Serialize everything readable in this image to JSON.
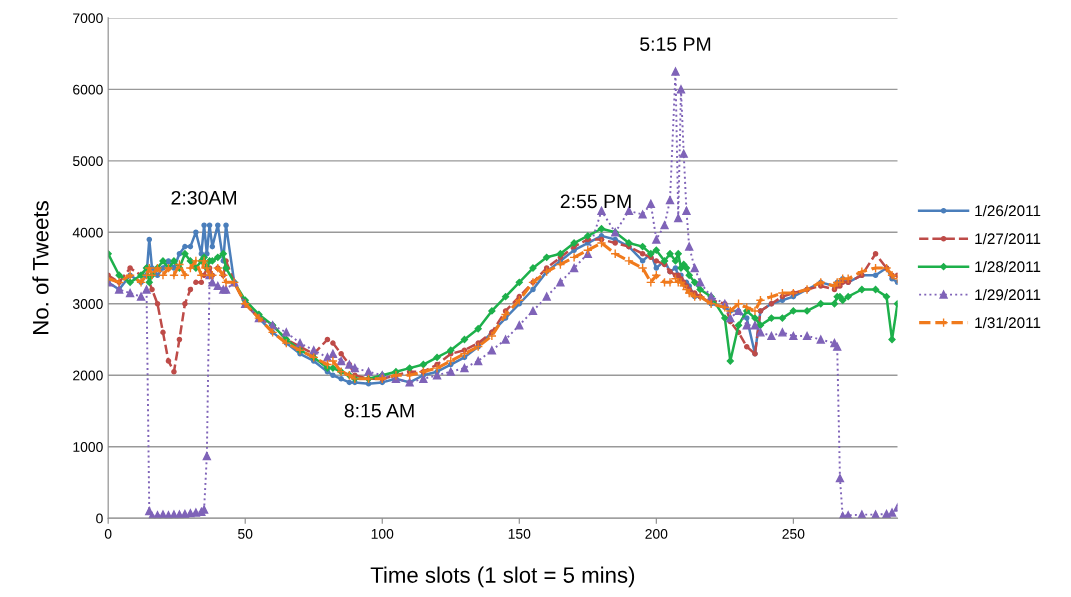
{
  "chart_data": {
    "type": "line",
    "xlabel": "Time slots (1 slot = 5 mins)",
    "ylabel": "No. of Tweets",
    "x": [
      0,
      4,
      8,
      12,
      14,
      15,
      16,
      18,
      20,
      22,
      24,
      26,
      28,
      30,
      32,
      34,
      35,
      36,
      37,
      38,
      40,
      42,
      43,
      46,
      50,
      55,
      60,
      65,
      70,
      75,
      80,
      82,
      85,
      88,
      90,
      95,
      100,
      105,
      110,
      115,
      120,
      125,
      130,
      135,
      140,
      145,
      150,
      155,
      160,
      165,
      170,
      175,
      180,
      185,
      190,
      195,
      198,
      200,
      203,
      205,
      207,
      208,
      209,
      210,
      211,
      212,
      214,
      216,
      220,
      225,
      227,
      230,
      233,
      236,
      238,
      242,
      246,
      250,
      255,
      260,
      265,
      266,
      267,
      268,
      270,
      275,
      280,
      284,
      286,
      288
    ],
    "series": [
      {
        "name": "1/26/2011",
        "color": "#4a7ebb",
        "marker": "circle",
        "line_style": "solid",
        "values": [
          3300,
          3200,
          3400,
          3300,
          3400,
          3900,
          3500,
          3400,
          3500,
          3600,
          3500,
          3700,
          3800,
          3800,
          4000,
          3700,
          4100,
          3700,
          4100,
          3800,
          4100,
          3600,
          4100,
          3300,
          3000,
          2800,
          2600,
          2450,
          2300,
          2200,
          2050,
          2000,
          1950,
          1900,
          1900,
          1880,
          1900,
          1950,
          1900,
          2000,
          2050,
          2150,
          2250,
          2400,
          2600,
          2800,
          3000,
          3200,
          3450,
          3600,
          3750,
          3850,
          3950,
          3900,
          3800,
          3600,
          3700,
          3500,
          3600,
          3450,
          3500,
          3400,
          3400,
          3300,
          3300,
          3250,
          3100,
          3100,
          3000,
          2950,
          2900,
          2900,
          2800,
          2300,
          2900,
          3000,
          3050,
          3100,
          3200,
          3300,
          3250,
          3300,
          3300,
          3350,
          3300,
          3400,
          3400,
          3500,
          3350,
          3300
        ]
      },
      {
        "name": "1/27/2011",
        "color": "#be4b48",
        "marker": "circle",
        "line_style": "dashed",
        "values": [
          3400,
          3300,
          3500,
          3400,
          3500,
          3300,
          3200,
          3000,
          2600,
          2200,
          2050,
          2500,
          3000,
          3200,
          3300,
          3300,
          3400,
          3500,
          3500,
          3400,
          3500,
          3400,
          3600,
          3300,
          3000,
          2800,
          2700,
          2500,
          2400,
          2300,
          2500,
          2450,
          2300,
          2150,
          2000,
          1950,
          1950,
          2000,
          2050,
          2050,
          2150,
          2300,
          2350,
          2450,
          2600,
          2900,
          3100,
          3300,
          3500,
          3650,
          3800,
          3900,
          3900,
          3850,
          3800,
          3700,
          3650,
          3600,
          3550,
          3450,
          3400,
          3400,
          3350,
          3300,
          3250,
          3200,
          3150,
          3100,
          3050,
          3000,
          2750,
          2600,
          2400,
          2300,
          2900,
          3000,
          3100,
          3150,
          3200,
          3250,
          3200,
          3250,
          3250,
          3300,
          3300,
          3400,
          3700,
          3500,
          3400,
          3400
        ]
      },
      {
        "name": "1/28/2011",
        "color": "#1db04b",
        "marker": "diamond",
        "line_style": "solid",
        "values": [
          3700,
          3400,
          3300,
          3400,
          3500,
          3300,
          3400,
          3500,
          3600,
          3500,
          3600,
          3500,
          3700,
          3600,
          3500,
          3600,
          3650,
          3500,
          3600,
          3600,
          3650,
          3700,
          3500,
          3300,
          3050,
          2850,
          2700,
          2500,
          2350,
          2250,
          2100,
          2100,
          2050,
          2000,
          1950,
          1950,
          2000,
          2050,
          2100,
          2150,
          2250,
          2350,
          2500,
          2650,
          2900,
          3100,
          3300,
          3500,
          3650,
          3700,
          3850,
          3950,
          4050,
          4000,
          3850,
          3800,
          3700,
          3750,
          3600,
          3700,
          3600,
          3700,
          3500,
          3550,
          3500,
          3400,
          3300,
          3200,
          3100,
          2800,
          2200,
          2700,
          2900,
          2800,
          2700,
          2800,
          2800,
          2900,
          2900,
          3000,
          3000,
          3100,
          3100,
          3050,
          3100,
          3200,
          3200,
          3100,
          2500,
          3000
        ]
      },
      {
        "name": "1/29/2011",
        "color": "#7f63b8",
        "marker": "triangle",
        "line_style": "dotted",
        "values": [
          3300,
          3200,
          3150,
          3100,
          3200,
          100,
          30,
          40,
          50,
          40,
          50,
          50,
          60,
          70,
          80,
          90,
          120,
          870,
          3400,
          3300,
          3250,
          3200,
          3200,
          3300,
          3000,
          2800,
          2700,
          2600,
          2450,
          2350,
          2250,
          2300,
          2200,
          2150,
          2100,
          2050,
          2000,
          1950,
          1900,
          1950,
          2000,
          2050,
          2100,
          2200,
          2350,
          2500,
          2700,
          2900,
          3100,
          3300,
          3500,
          3700,
          4300,
          4000,
          4300,
          4250,
          4400,
          3900,
          4100,
          4450,
          6250,
          4200,
          6000,
          5100,
          4300,
          3800,
          3500,
          3300,
          3100,
          3000,
          2800,
          2900,
          2700,
          2700,
          2600,
          2550,
          2600,
          2550,
          2550,
          2500,
          2450,
          2400,
          560,
          30,
          40,
          50,
          50,
          60,
          80,
          150
        ]
      },
      {
        "name": "1/31/2011",
        "color": "#f07a1c",
        "marker": "cross",
        "line_style": "dashed",
        "values": [
          3350,
          3300,
          3400,
          3300,
          3400,
          3500,
          3400,
          3500,
          3400,
          3500,
          3400,
          3550,
          3400,
          3500,
          3600,
          3400,
          3600,
          3500,
          3400,
          3400,
          3500,
          3400,
          3300,
          3300,
          3000,
          2800,
          2600,
          2450,
          2350,
          2250,
          2150,
          2200,
          2050,
          2000,
          1950,
          1950,
          1950,
          2000,
          2000,
          2050,
          2100,
          2200,
          2300,
          2400,
          2550,
          2850,
          3050,
          3300,
          3450,
          3550,
          3650,
          3750,
          3850,
          3700,
          3600,
          3500,
          3300,
          3400,
          3300,
          3300,
          3350,
          3300,
          3300,
          3250,
          3200,
          3150,
          3100,
          3100,
          3000,
          2950,
          2900,
          3000,
          2950,
          2900,
          3050,
          3100,
          3150,
          3150,
          3200,
          3300,
          3250,
          3300,
          3300,
          3350,
          3350,
          3450,
          3500,
          3500,
          3400,
          3350
        ]
      }
    ],
    "xlim": [
      0,
      288
    ],
    "xticks": [
      0,
      50,
      100,
      150,
      200,
      250
    ],
    "ylim": [
      0,
      7000
    ],
    "yticks": [
      0,
      1000,
      2000,
      3000,
      4000,
      5000,
      6000,
      7000
    ],
    "grid": "y",
    "legend": "right",
    "annotations": [
      {
        "text": "2:30AM",
        "x": 35,
        "y": 4100
      },
      {
        "text": "8:15 AM",
        "x": 99,
        "y": 1880
      },
      {
        "text": "2:55 PM",
        "x": 178,
        "y": 4050
      },
      {
        "text": "5:15 PM",
        "x": 207,
        "y": 6250
      }
    ]
  }
}
